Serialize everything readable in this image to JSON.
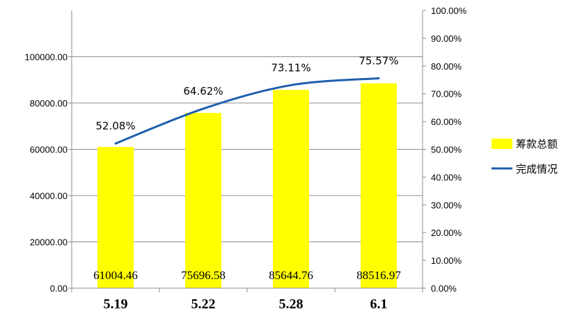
{
  "chart_data": {
    "type": "bar",
    "categories": [
      "5.19",
      "5.22",
      "5.28",
      "6.1"
    ],
    "series": [
      {
        "name": "筹款总额",
        "type": "bar",
        "axis": "left",
        "values": [
          61004.46,
          75696.58,
          85644.76,
          88516.97
        ],
        "value_labels": [
          "61004.46",
          "75696.58",
          "85644.76",
          "88516.97"
        ],
        "color": "#ffff00"
      },
      {
        "name": "完成情况",
        "type": "line",
        "axis": "right",
        "values": [
          52.08,
          64.62,
          73.11,
          75.57
        ],
        "value_labels": [
          "52.08%",
          "64.62%",
          "73.11%",
          "75.57%"
        ],
        "color": "#1f5fae"
      }
    ],
    "y_left": {
      "min": 0,
      "max": 120000,
      "ticks": [
        0,
        20000,
        40000,
        60000,
        80000,
        100000
      ],
      "tick_labels": [
        "0.00",
        "20000.00",
        "40000.00",
        "60000.00",
        "80000.00",
        "100000.00"
      ]
    },
    "y_right": {
      "min": 0,
      "max": 100,
      "ticks": [
        0,
        10,
        20,
        30,
        40,
        50,
        60,
        70,
        80,
        90,
        100
      ],
      "tick_labels": [
        "0.00%",
        "10.00%",
        "20.00%",
        "30.00%",
        "40.00%",
        "50.00%",
        "60.00%",
        "70.00%",
        "80.00%",
        "90.00%",
        "100.00%"
      ]
    },
    "grid": true,
    "legend_position": "right"
  }
}
